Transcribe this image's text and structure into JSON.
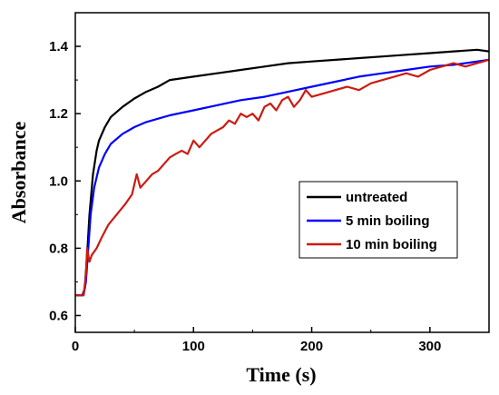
{
  "chart_data": {
    "type": "line",
    "xlabel": "Time (s)",
    "ylabel": "Absorbance",
    "xlim": [
      0,
      350
    ],
    "ylim": [
      0.55,
      1.5
    ],
    "xticks": [
      0,
      100,
      200,
      300
    ],
    "yticks": [
      0.6,
      0.8,
      1.0,
      1.2,
      1.4
    ],
    "ytick_labels": [
      "0.6",
      "0.8",
      "1.0",
      "1.2",
      "1.4"
    ],
    "grid": false,
    "legend_position": "right",
    "series": [
      {
        "name": "untreated",
        "color": "#000000",
        "x": [
          0,
          6,
          8,
          10,
          12,
          15,
          18,
          20,
          25,
          30,
          40,
          50,
          60,
          70,
          80,
          100,
          120,
          140,
          160,
          180,
          200,
          220,
          240,
          260,
          280,
          300,
          320,
          340,
          350
        ],
        "y": [
          0.66,
          0.66,
          0.68,
          0.78,
          0.9,
          1.02,
          1.09,
          1.12,
          1.16,
          1.19,
          1.22,
          1.245,
          1.265,
          1.28,
          1.3,
          1.31,
          1.32,
          1.33,
          1.34,
          1.35,
          1.355,
          1.36,
          1.365,
          1.37,
          1.375,
          1.38,
          1.385,
          1.39,
          1.385
        ]
      },
      {
        "name": "5 min boiling",
        "color": "#0000ff",
        "x": [
          0,
          7,
          9,
          11,
          13,
          16,
          20,
          25,
          30,
          40,
          50,
          60,
          80,
          100,
          120,
          140,
          160,
          180,
          200,
          220,
          240,
          260,
          280,
          300,
          320,
          340,
          350
        ],
        "y": [
          0.66,
          0.66,
          0.7,
          0.8,
          0.9,
          0.98,
          1.04,
          1.08,
          1.11,
          1.14,
          1.16,
          1.175,
          1.195,
          1.21,
          1.225,
          1.24,
          1.25,
          1.265,
          1.28,
          1.295,
          1.31,
          1.32,
          1.33,
          1.34,
          1.345,
          1.355,
          1.36
        ]
      },
      {
        "name": "10 min boiling",
        "color": "#cc1a10",
        "x": [
          0,
          7,
          9,
          10,
          12,
          14,
          18,
          22,
          28,
          35,
          42,
          48,
          52,
          55,
          60,
          65,
          70,
          75,
          80,
          85,
          90,
          95,
          100,
          105,
          110,
          115,
          120,
          125,
          130,
          135,
          140,
          145,
          150,
          155,
          160,
          165,
          170,
          175,
          180,
          185,
          190,
          195,
          200,
          210,
          220,
          230,
          240,
          250,
          260,
          270,
          280,
          290,
          300,
          310,
          320,
          330,
          340,
          350
        ],
        "y": [
          0.66,
          0.66,
          0.72,
          0.8,
          0.76,
          0.78,
          0.8,
          0.83,
          0.87,
          0.9,
          0.93,
          0.96,
          1.02,
          0.98,
          1.0,
          1.02,
          1.03,
          1.05,
          1.07,
          1.08,
          1.09,
          1.08,
          1.12,
          1.1,
          1.12,
          1.14,
          1.15,
          1.16,
          1.18,
          1.17,
          1.2,
          1.19,
          1.2,
          1.18,
          1.22,
          1.23,
          1.21,
          1.24,
          1.25,
          1.22,
          1.24,
          1.27,
          1.25,
          1.26,
          1.27,
          1.28,
          1.27,
          1.29,
          1.3,
          1.31,
          1.32,
          1.31,
          1.33,
          1.34,
          1.35,
          1.34,
          1.35,
          1.36
        ]
      }
    ]
  }
}
